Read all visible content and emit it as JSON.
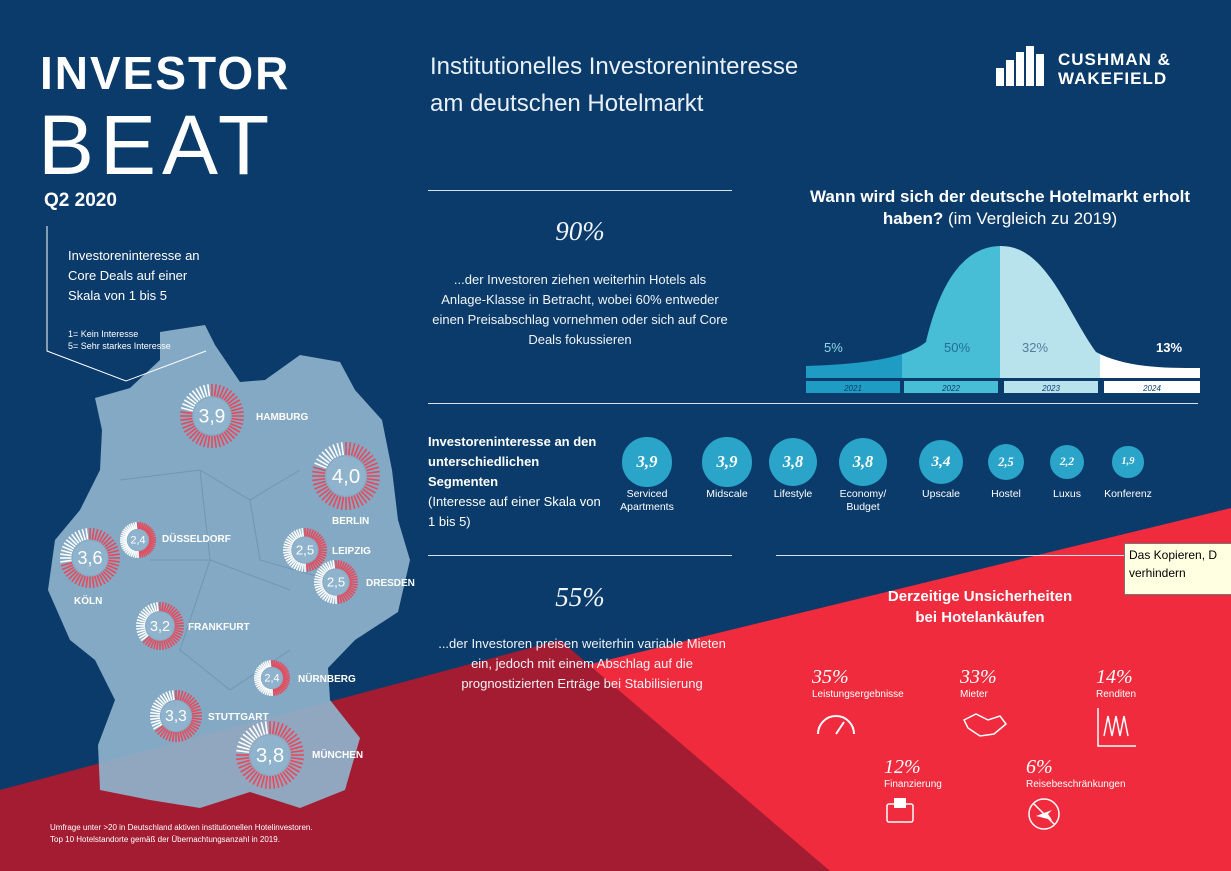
{
  "header": {
    "title_line1": "INVESTOR",
    "title_line2": "BEAT",
    "quarter": "Q2 2020",
    "headline_line1": "Institutionelles Investoreninteresse",
    "headline_line2": "am deutschen Hotelmarkt",
    "logo_line1": "CUSHMAN &",
    "logo_line2": "WAKEFIELD"
  },
  "map_legend": {
    "text": "Investoreninteresse an Core Deals auf einer Skala von 1 bis 5",
    "scale_1": "1= Kein Interesse",
    "scale_5": "5= Sehr starkes Interesse"
  },
  "cities": [
    {
      "name": "HAMBURG",
      "value": "3,9"
    },
    {
      "name": "BERLIN",
      "value": "4,0"
    },
    {
      "name": "DÜSSELDORF",
      "value": "2,4"
    },
    {
      "name": "LEIPZIG",
      "value": "2,5"
    },
    {
      "name": "KÖLN",
      "value": "3,6"
    },
    {
      "name": "DRESDEN",
      "value": "2,5"
    },
    {
      "name": "FRANKFURT",
      "value": "3,2"
    },
    {
      "name": "NÜRNBERG",
      "value": "2,4"
    },
    {
      "name": "STUTTGART",
      "value": "3,3"
    },
    {
      "name": "MÜNCHEN",
      "value": "3,8"
    }
  ],
  "footnote": {
    "line1": "Umfrage unter >20 in Deutschland aktiven institutionellen Hotelinvestoren.",
    "line2": "Top 10 Hotelstandorte gemäß der Übernachtungsanzahl in 2019."
  },
  "stat1": {
    "pct": "90%",
    "text": "...der Investoren ziehen weiterhin Hotels als Anlage-Klasse in Betracht, wobei 60% entweder einen Preisabschlag vornehmen oder sich auf Core Deals fokussieren"
  },
  "stat2": {
    "pct": "55%",
    "text": "...der Investoren preisen weiterhin variable Mieten ein, jedoch mit einem Abschlag auf die prognostizierten Erträge bei Stabilisierung"
  },
  "recovery": {
    "question_bold": "Wann wird sich der deutsche Hotelmarkt erholt haben?",
    "question_rest": "(im Vergleich zu 2019)",
    "bands": [
      {
        "year": "2021",
        "pct": "5%",
        "color": "#1e9cc4"
      },
      {
        "year": "2022",
        "pct": "50%",
        "color": "#47bdd6"
      },
      {
        "year": "2023",
        "pct": "32%",
        "color": "#b9e3ec"
      },
      {
        "year": "2024",
        "pct": "13%",
        "color": "#ffffff"
      }
    ]
  },
  "segments": {
    "title_bold": "Investoreninteresse an den unterschiedlichen Segmenten",
    "subtitle": "(Interesse auf einer Skala von 1 bis 5)",
    "items": [
      {
        "value": "3,9",
        "label": "Serviced Apartments"
      },
      {
        "value": "3,9",
        "label": "Midscale"
      },
      {
        "value": "3,8",
        "label": "Lifestyle"
      },
      {
        "value": "3,8",
        "label": "Economy/ Budget"
      },
      {
        "value": "3,4",
        "label": "Upscale"
      },
      {
        "value": "2,5",
        "label": "Hostel"
      },
      {
        "value": "2,2",
        "label": "Luxus"
      },
      {
        "value": "1,9",
        "label": "Konferenz"
      }
    ]
  },
  "uncertainties": {
    "title_line1": "Derzeitige Unsicherheiten",
    "title_line2": "bei Hotelankäufen",
    "items": [
      {
        "pct": "35%",
        "label": "Leistungsergebnisse",
        "icon": "gauge-icon"
      },
      {
        "pct": "33%",
        "label": "Mieter",
        "icon": "handshake-icon"
      },
      {
        "pct": "14%",
        "label": "Renditen",
        "icon": "chart-icon"
      },
      {
        "pct": "12%",
        "label": "Finanzierung",
        "icon": "wallet-icon"
      },
      {
        "pct": "6%",
        "label": "Reisebeschränkungen",
        "icon": "no-plane-icon"
      }
    ]
  },
  "tooltip": {
    "line1": "Das Kopieren, D",
    "line2": "verhindern"
  },
  "colors": {
    "navy": "#0b3b6a",
    "red": "#ef2b3d",
    "dark_red": "#a31c32",
    "map": "#8fb3cc",
    "teal": "#2aa4c8"
  }
}
